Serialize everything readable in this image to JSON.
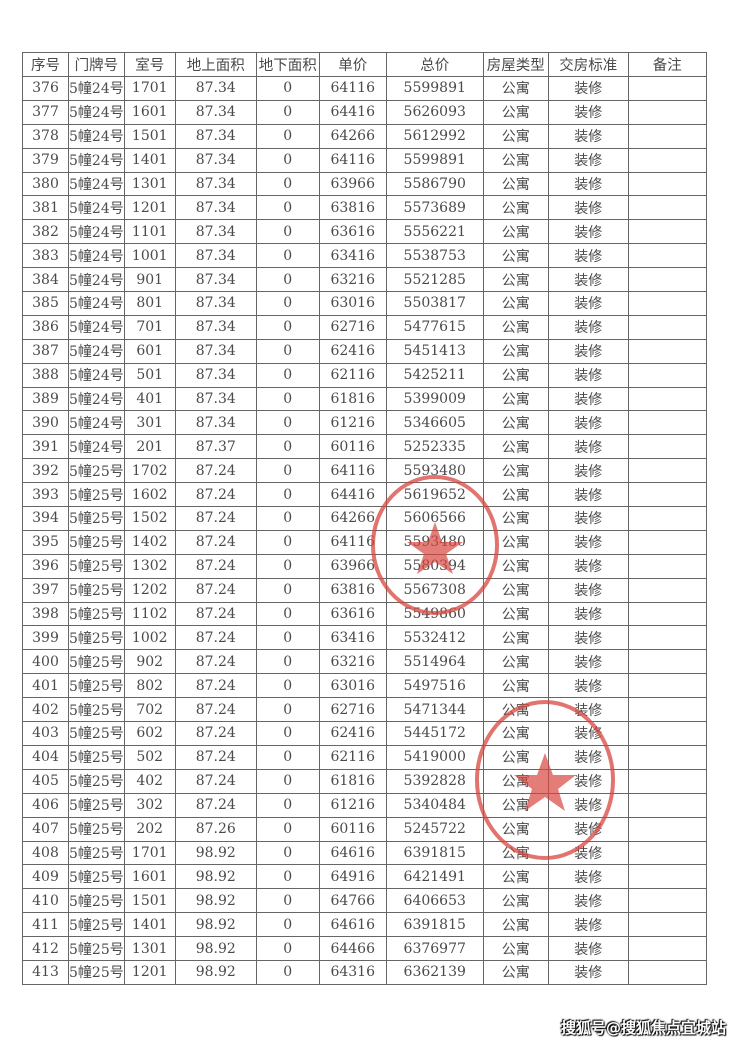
{
  "columns": [
    "序号",
    "门牌号",
    "室号",
    "地上面积",
    "地下面积",
    "单价",
    "总价",
    "房屋类型",
    "交房标准",
    "备注"
  ],
  "rows": [
    [
      "376",
      "5幢24号",
      "1701",
      "87.34",
      "0",
      "64116",
      "5599891",
      "公寓",
      "装修",
      ""
    ],
    [
      "377",
      "5幢24号",
      "1601",
      "87.34",
      "0",
      "64416",
      "5626093",
      "公寓",
      "装修",
      ""
    ],
    [
      "378",
      "5幢24号",
      "1501",
      "87.34",
      "0",
      "64266",
      "5612992",
      "公寓",
      "装修",
      ""
    ],
    [
      "379",
      "5幢24号",
      "1401",
      "87.34",
      "0",
      "64116",
      "5599891",
      "公寓",
      "装修",
      ""
    ],
    [
      "380",
      "5幢24号",
      "1301",
      "87.34",
      "0",
      "63966",
      "5586790",
      "公寓",
      "装修",
      ""
    ],
    [
      "381",
      "5幢24号",
      "1201",
      "87.34",
      "0",
      "63816",
      "5573689",
      "公寓",
      "装修",
      ""
    ],
    [
      "382",
      "5幢24号",
      "1101",
      "87.34",
      "0",
      "63616",
      "5556221",
      "公寓",
      "装修",
      ""
    ],
    [
      "383",
      "5幢24号",
      "1001",
      "87.34",
      "0",
      "63416",
      "5538753",
      "公寓",
      "装修",
      ""
    ],
    [
      "384",
      "5幢24号",
      "901",
      "87.34",
      "0",
      "63216",
      "5521285",
      "公寓",
      "装修",
      ""
    ],
    [
      "385",
      "5幢24号",
      "801",
      "87.34",
      "0",
      "63016",
      "5503817",
      "公寓",
      "装修",
      ""
    ],
    [
      "386",
      "5幢24号",
      "701",
      "87.34",
      "0",
      "62716",
      "5477615",
      "公寓",
      "装修",
      ""
    ],
    [
      "387",
      "5幢24号",
      "601",
      "87.34",
      "0",
      "62416",
      "5451413",
      "公寓",
      "装修",
      ""
    ],
    [
      "388",
      "5幢24号",
      "501",
      "87.34",
      "0",
      "62116",
      "5425211",
      "公寓",
      "装修",
      ""
    ],
    [
      "389",
      "5幢24号",
      "401",
      "87.34",
      "0",
      "61816",
      "5399009",
      "公寓",
      "装修",
      ""
    ],
    [
      "390",
      "5幢24号",
      "301",
      "87.34",
      "0",
      "61216",
      "5346605",
      "公寓",
      "装修",
      ""
    ],
    [
      "391",
      "5幢24号",
      "201",
      "87.37",
      "0",
      "60116",
      "5252335",
      "公寓",
      "装修",
      ""
    ],
    [
      "392",
      "5幢25号",
      "1702",
      "87.24",
      "0",
      "64116",
      "5593480",
      "公寓",
      "装修",
      ""
    ],
    [
      "393",
      "5幢25号",
      "1602",
      "87.24",
      "0",
      "64416",
      "5619652",
      "公寓",
      "装修",
      ""
    ],
    [
      "394",
      "5幢25号",
      "1502",
      "87.24",
      "0",
      "64266",
      "5606566",
      "公寓",
      "装修",
      ""
    ],
    [
      "395",
      "5幢25号",
      "1402",
      "87.24",
      "0",
      "64116",
      "5593480",
      "公寓",
      "装修",
      ""
    ],
    [
      "396",
      "5幢25号",
      "1302",
      "87.24",
      "0",
      "63966",
      "5580394",
      "公寓",
      "装修",
      ""
    ],
    [
      "397",
      "5幢25号",
      "1202",
      "87.24",
      "0",
      "63816",
      "5567308",
      "公寓",
      "装修",
      ""
    ],
    [
      "398",
      "5幢25号",
      "1102",
      "87.24",
      "0",
      "63616",
      "5549860",
      "公寓",
      "装修",
      ""
    ],
    [
      "399",
      "5幢25号",
      "1002",
      "87.24",
      "0",
      "63416",
      "5532412",
      "公寓",
      "装修",
      ""
    ],
    [
      "400",
      "5幢25号",
      "902",
      "87.24",
      "0",
      "63216",
      "5514964",
      "公寓",
      "装修",
      ""
    ],
    [
      "401",
      "5幢25号",
      "802",
      "87.24",
      "0",
      "63016",
      "5497516",
      "公寓",
      "装修",
      ""
    ],
    [
      "402",
      "5幢25号",
      "702",
      "87.24",
      "0",
      "62716",
      "5471344",
      "公寓",
      "装修",
      ""
    ],
    [
      "403",
      "5幢25号",
      "602",
      "87.24",
      "0",
      "62416",
      "5445172",
      "公寓",
      "装修",
      ""
    ],
    [
      "404",
      "5幢25号",
      "502",
      "87.24",
      "0",
      "62116",
      "5419000",
      "公寓",
      "装修",
      ""
    ],
    [
      "405",
      "5幢25号",
      "402",
      "87.24",
      "0",
      "61816",
      "5392828",
      "公寓",
      "装修",
      ""
    ],
    [
      "406",
      "5幢25号",
      "302",
      "87.24",
      "0",
      "61216",
      "5340484",
      "公寓",
      "装修",
      ""
    ],
    [
      "407",
      "5幢25号",
      "202",
      "87.26",
      "0",
      "60116",
      "5245722",
      "公寓",
      "装修",
      ""
    ],
    [
      "408",
      "5幢25号",
      "1701",
      "98.92",
      "0",
      "64616",
      "6391815",
      "公寓",
      "装修",
      ""
    ],
    [
      "409",
      "5幢25号",
      "1601",
      "98.92",
      "0",
      "64916",
      "6421491",
      "公寓",
      "装修",
      ""
    ],
    [
      "410",
      "5幢25号",
      "1501",
      "98.92",
      "0",
      "64766",
      "6406653",
      "公寓",
      "装修",
      ""
    ],
    [
      "411",
      "5幢25号",
      "1401",
      "98.92",
      "0",
      "64616",
      "6391815",
      "公寓",
      "装修",
      ""
    ],
    [
      "412",
      "5幢25号",
      "1301",
      "98.92",
      "0",
      "64466",
      "6376977",
      "公寓",
      "装修",
      ""
    ],
    [
      "413",
      "5幢25号",
      "1201",
      "98.92",
      "0",
      "64316",
      "6362139",
      "公寓",
      "装修",
      ""
    ]
  ],
  "stamp_color": "#d8453f",
  "watermark": "搜狐号@搜狐焦点宜城站"
}
